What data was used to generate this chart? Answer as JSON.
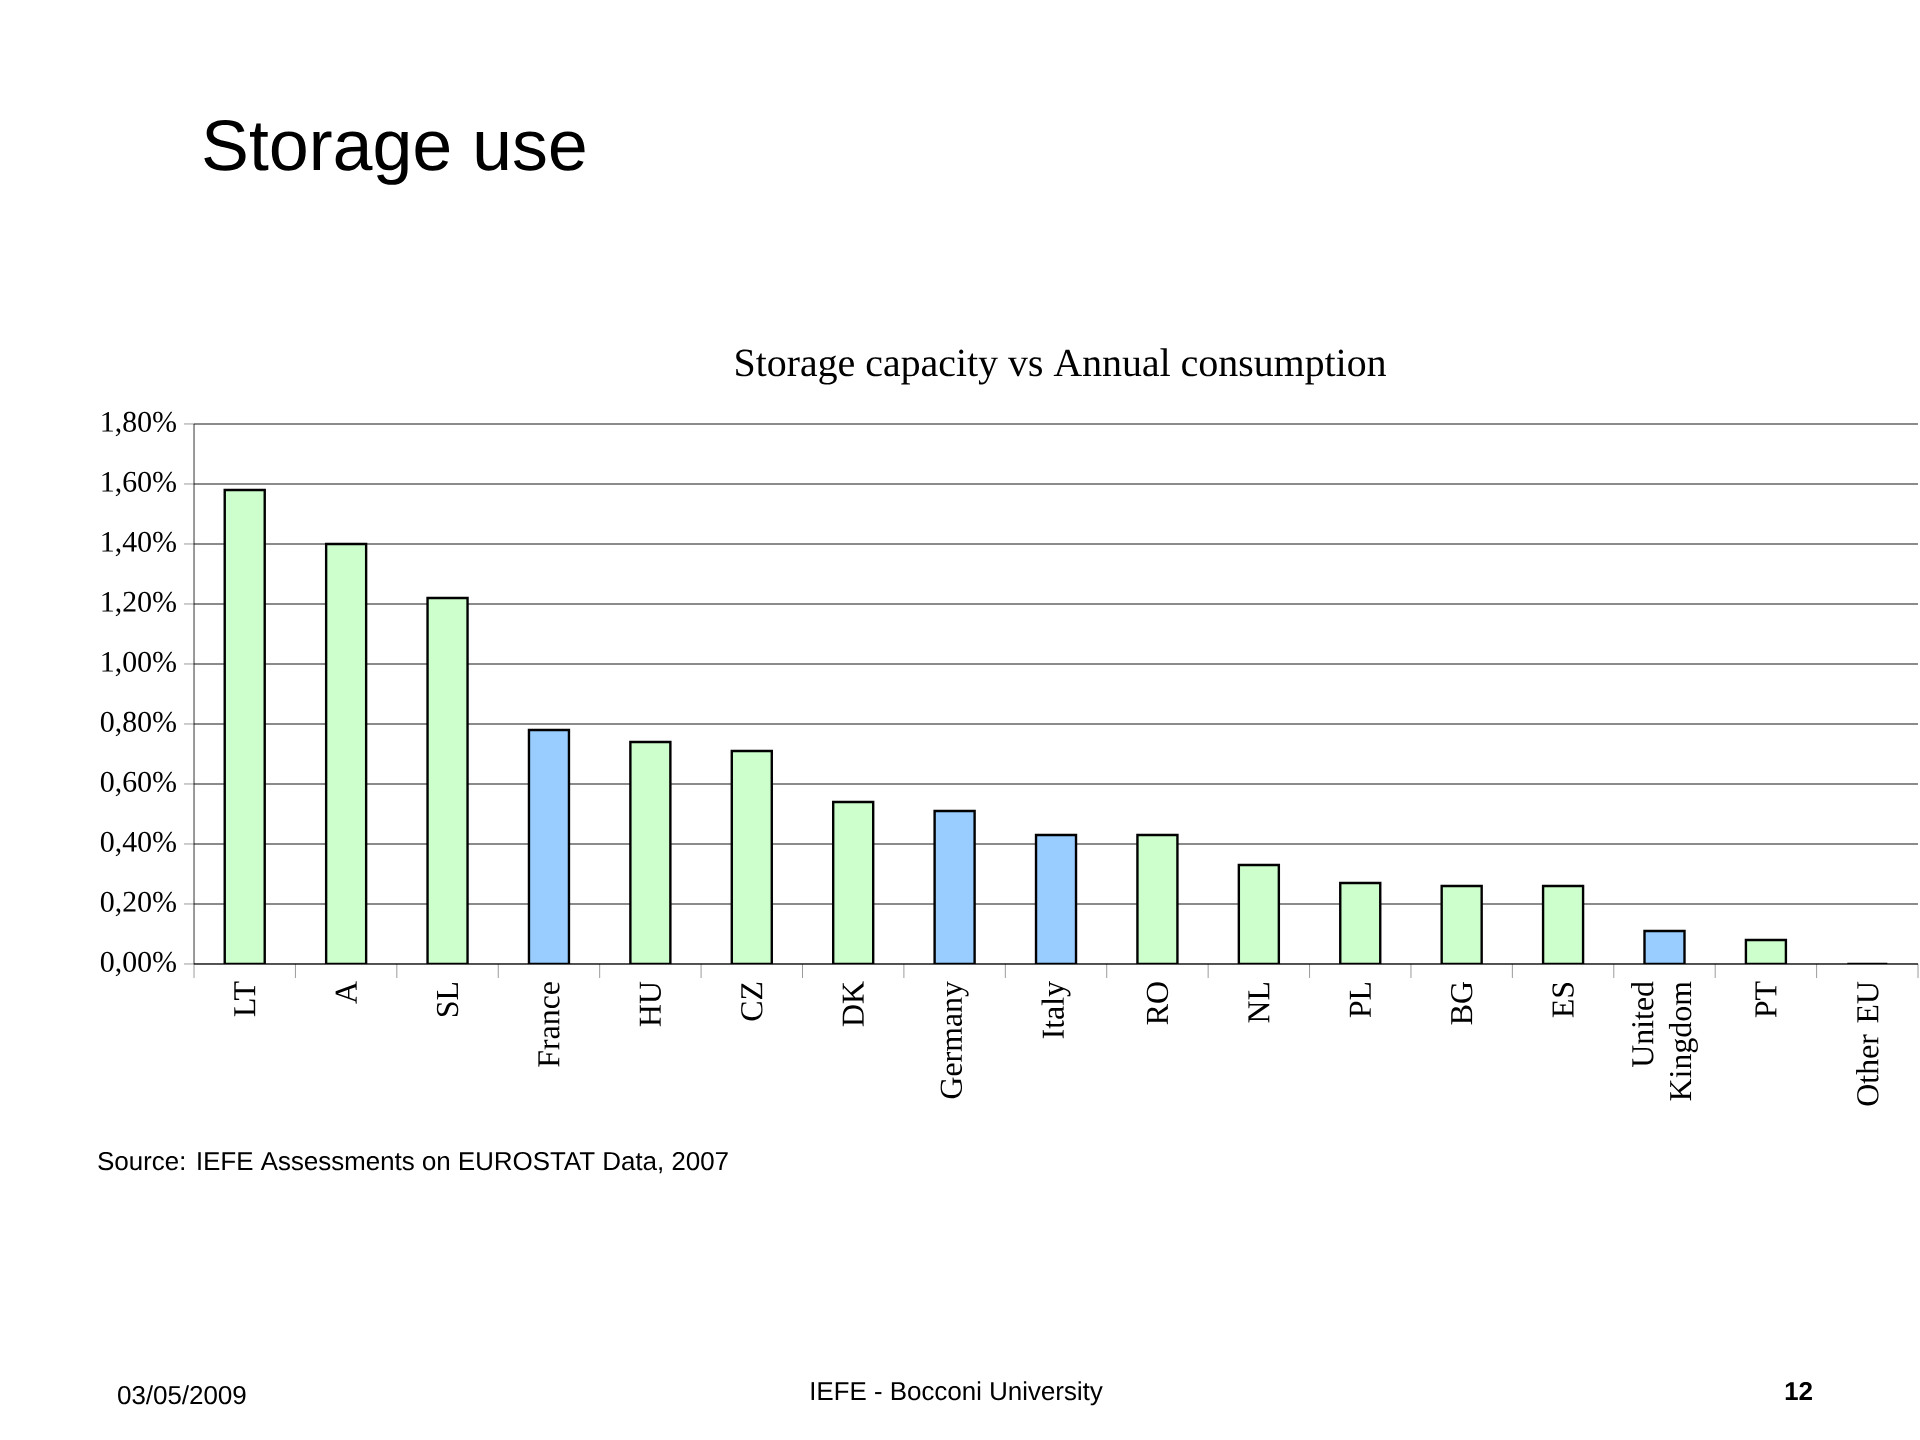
{
  "chart_data": {
    "type": "bar",
    "title": "Storage use",
    "subtitle": "Storage capacity vs Annual consumption",
    "categories": [
      "LT",
      "A",
      "SL",
      "France",
      "HU",
      "CZ",
      "DK",
      "Germany",
      "Italy",
      "RO",
      "NL",
      "PL",
      "BG",
      "ES",
      "United Kingdom",
      "PT",
      "Other EU"
    ],
    "values": [
      1.58,
      1.4,
      1.22,
      0.78,
      0.74,
      0.71,
      0.54,
      0.51,
      0.43,
      0.43,
      0.33,
      0.27,
      0.26,
      0.26,
      0.11,
      0.08,
      0
    ],
    "colors": [
      "#ccffcc",
      "#ccffcc",
      "#ccffcc",
      "#99ccff",
      "#ccffcc",
      "#ccffcc",
      "#ccffcc",
      "#99ccff",
      "#99ccff",
      "#ccffcc",
      "#ccffcc",
      "#ccffcc",
      "#ccffcc",
      "#ccffcc",
      "#99ccff",
      "#ccffcc",
      "#ccffcc"
    ],
    "ylim": [
      0,
      1.8
    ],
    "yticks": [
      {
        "value": 0,
        "label": "0,00%"
      },
      {
        "value": 0.2,
        "label": "0,20%"
      },
      {
        "value": 0.4,
        "label": "0,40%"
      },
      {
        "value": 0.6,
        "label": "0,60%"
      },
      {
        "value": 0.8,
        "label": "0,80%"
      },
      {
        "value": 1.0,
        "label": "1,00%"
      },
      {
        "value": 1.2,
        "label": "1,20%"
      },
      {
        "value": 1.4,
        "label": "1,40%"
      },
      {
        "value": 1.6,
        "label": "1,60%"
      },
      {
        "value": 1.8,
        "label": "1,80%"
      }
    ],
    "grid": "y",
    "annotations": [
      "Source: IEFE Assessments on EUROSTAT Data, 2007",
      "03/05/2009",
      "IEFE - Bocconi University",
      "12"
    ]
  }
}
